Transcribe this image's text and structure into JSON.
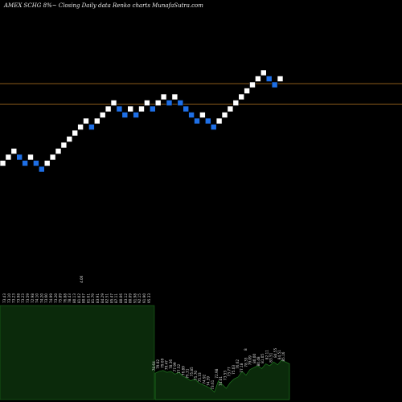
{
  "header": {
    "title": "AMEX  SCHG 8%~  Closing Daily data Renko  charts MunafaSutra.com"
  },
  "colors": {
    "background": "#000000",
    "up_brick": "#ffffff",
    "down_brick": "#1e6fe6",
    "level_line": "#8a5a1a",
    "volume_fill": "#0b2a0b",
    "volume_edge": "#1f7a1f",
    "label_text": "#dddddd"
  },
  "chart_data": {
    "type": "renko",
    "title": "AMEX  SCHG 8%~  Closing Daily data Renko  charts MunafaSutra.com",
    "bricks": [
      {
        "dir": "up",
        "level": 1
      },
      {
        "dir": "up",
        "level": 2
      },
      {
        "dir": "up",
        "level": 3
      },
      {
        "dir": "down",
        "level": 2
      },
      {
        "dir": "down",
        "level": 1
      },
      {
        "dir": "up",
        "level": 2
      },
      {
        "dir": "down",
        "level": 1
      },
      {
        "dir": "down",
        "level": 0
      },
      {
        "dir": "up",
        "level": 1
      },
      {
        "dir": "up",
        "level": 2
      },
      {
        "dir": "up",
        "level": 3
      },
      {
        "dir": "up",
        "level": 4
      },
      {
        "dir": "up",
        "level": 5
      },
      {
        "dir": "up",
        "level": 6
      },
      {
        "dir": "up",
        "level": 7
      },
      {
        "dir": "up",
        "level": 8
      },
      {
        "dir": "down",
        "level": 7
      },
      {
        "dir": "up",
        "level": 8
      },
      {
        "dir": "up",
        "level": 9
      },
      {
        "dir": "up",
        "level": 10
      },
      {
        "dir": "up",
        "level": 11
      },
      {
        "dir": "down",
        "level": 10
      },
      {
        "dir": "down",
        "level": 9
      },
      {
        "dir": "up",
        "level": 10
      },
      {
        "dir": "down",
        "level": 9
      },
      {
        "dir": "up",
        "level": 10
      },
      {
        "dir": "up",
        "level": 11
      },
      {
        "dir": "down",
        "level": 10
      },
      {
        "dir": "up",
        "level": 11
      },
      {
        "dir": "up",
        "level": 12
      },
      {
        "dir": "down",
        "level": 11
      },
      {
        "dir": "up",
        "level": 12
      },
      {
        "dir": "down",
        "level": 11
      },
      {
        "dir": "down",
        "level": 10
      },
      {
        "dir": "down",
        "level": 9
      },
      {
        "dir": "down",
        "level": 8
      },
      {
        "dir": "up",
        "level": 9
      },
      {
        "dir": "down",
        "level": 8
      },
      {
        "dir": "down",
        "level": 7
      },
      {
        "dir": "up",
        "level": 8
      },
      {
        "dir": "up",
        "level": 9
      },
      {
        "dir": "up",
        "level": 10
      },
      {
        "dir": "up",
        "level": 11
      },
      {
        "dir": "up",
        "level": 12
      },
      {
        "dir": "up",
        "level": 13
      },
      {
        "dir": "up",
        "level": 14
      },
      {
        "dir": "up",
        "level": 15
      },
      {
        "dir": "up",
        "level": 16
      },
      {
        "dir": "down",
        "level": 15
      },
      {
        "dir": "down",
        "level": 14
      },
      {
        "dir": "up",
        "level": 15
      }
    ],
    "levels": [
      {
        "name": "upper",
        "brick_level": 14.2
      },
      {
        "name": "lower",
        "brick_level": 10.8
      }
    ],
    "volume": {
      "left_block_value": 1.0,
      "right_values": [
        0.28,
        0.3,
        0.31,
        0.29,
        0.3,
        0.27,
        0.29,
        0.25,
        0.23,
        0.2,
        0.22,
        0.18,
        0.16,
        0.14,
        0.12,
        0.08,
        0.2,
        0.16,
        0.12,
        0.18,
        0.22,
        0.24,
        0.3,
        0.26,
        0.32,
        0.34,
        0.36,
        0.33,
        0.38,
        0.36,
        0.4,
        0.37,
        0.42,
        0.4,
        0.38
      ]
    },
    "top_labels": [
      "73.43",
      "73.10",
      "73.23",
      "73.98",
      "73.23",
      "73.59",
      "72.98",
      "74.10",
      "74.20",
      "73.60",
      "74.99",
      "73.20",
      "75.89",
      "76.88",
      "78.43",
      "80.13",
      "81.02",
      "80.67",
      "81.61",
      "81.79",
      "83.91",
      "84.29",
      "82.51",
      "85.47",
      "87.11",
      "80.06",
      "83.12",
      "80.09",
      "91.98",
      "92.15",
      "91.90",
      "95.33"
    ],
    "top_special_label": "4.06",
    "bottom_labels": [
      "78.64",
      "79.02",
      "79.69",
      "79.47",
      "78.36",
      "77.99",
      "77.52",
      "76.89",
      "76.31",
      "75.85",
      "75.70",
      "75.33",
      "74.92",
      "74.39",
      "73.61",
      "72.98",
      "74.01",
      "73.53",
      "73.77",
      "75.03",
      "76.62",
      "77.18",
      "78.33",
      "79.09",
      "80.00",
      "80.48",
      "81.05",
      "82.11",
      "83.51",
      "84.55",
      "84.51",
      "85.16"
    ],
    "bottom_special_label": "8"
  }
}
